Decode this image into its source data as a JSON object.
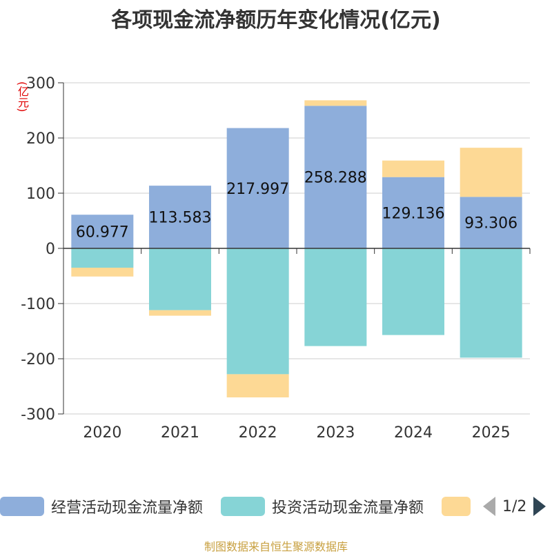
{
  "title": "各项现金流净额历年变化情况(亿元)",
  "unit_label": "(亿元)",
  "source": "制图数据来自恒生聚源数据库",
  "legend": {
    "items": [
      {
        "label": "经营活动现金流量净额",
        "color": "#8eaedb"
      },
      {
        "label": "投资活动现金流量净额",
        "color": "#86d4d6"
      },
      {
        "label": "",
        "color": "#fdd995"
      }
    ],
    "pager": {
      "text": "1/2"
    }
  },
  "chart_data": {
    "type": "bar",
    "stacked": true,
    "categories": [
      "2020",
      "2021",
      "2022",
      "2023",
      "2024",
      "2025"
    ],
    "ylim": [
      -300,
      300
    ],
    "yticks": [
      -300,
      -200,
      -100,
      0,
      100,
      200,
      300
    ],
    "grid": true,
    "legend_position": "bottom",
    "series": [
      {
        "name": "经营活动现金流量净额",
        "color": "#8eaedb",
        "values": [
          60.977,
          113.583,
          217.997,
          258.288,
          129.136,
          93.306
        ],
        "labels": [
          "60.977",
          "113.583",
          "217.997",
          "258.288",
          "129.136",
          "93.306"
        ]
      },
      {
        "name": "投资活动现金流量净额",
        "color": "#86d4d6",
        "values": [
          -35,
          -112,
          -228,
          -177,
          -157,
          -198
        ]
      },
      {
        "color": "#fdd995",
        "values": [
          -16,
          -10,
          -42,
          10,
          30,
          89
        ]
      }
    ]
  }
}
